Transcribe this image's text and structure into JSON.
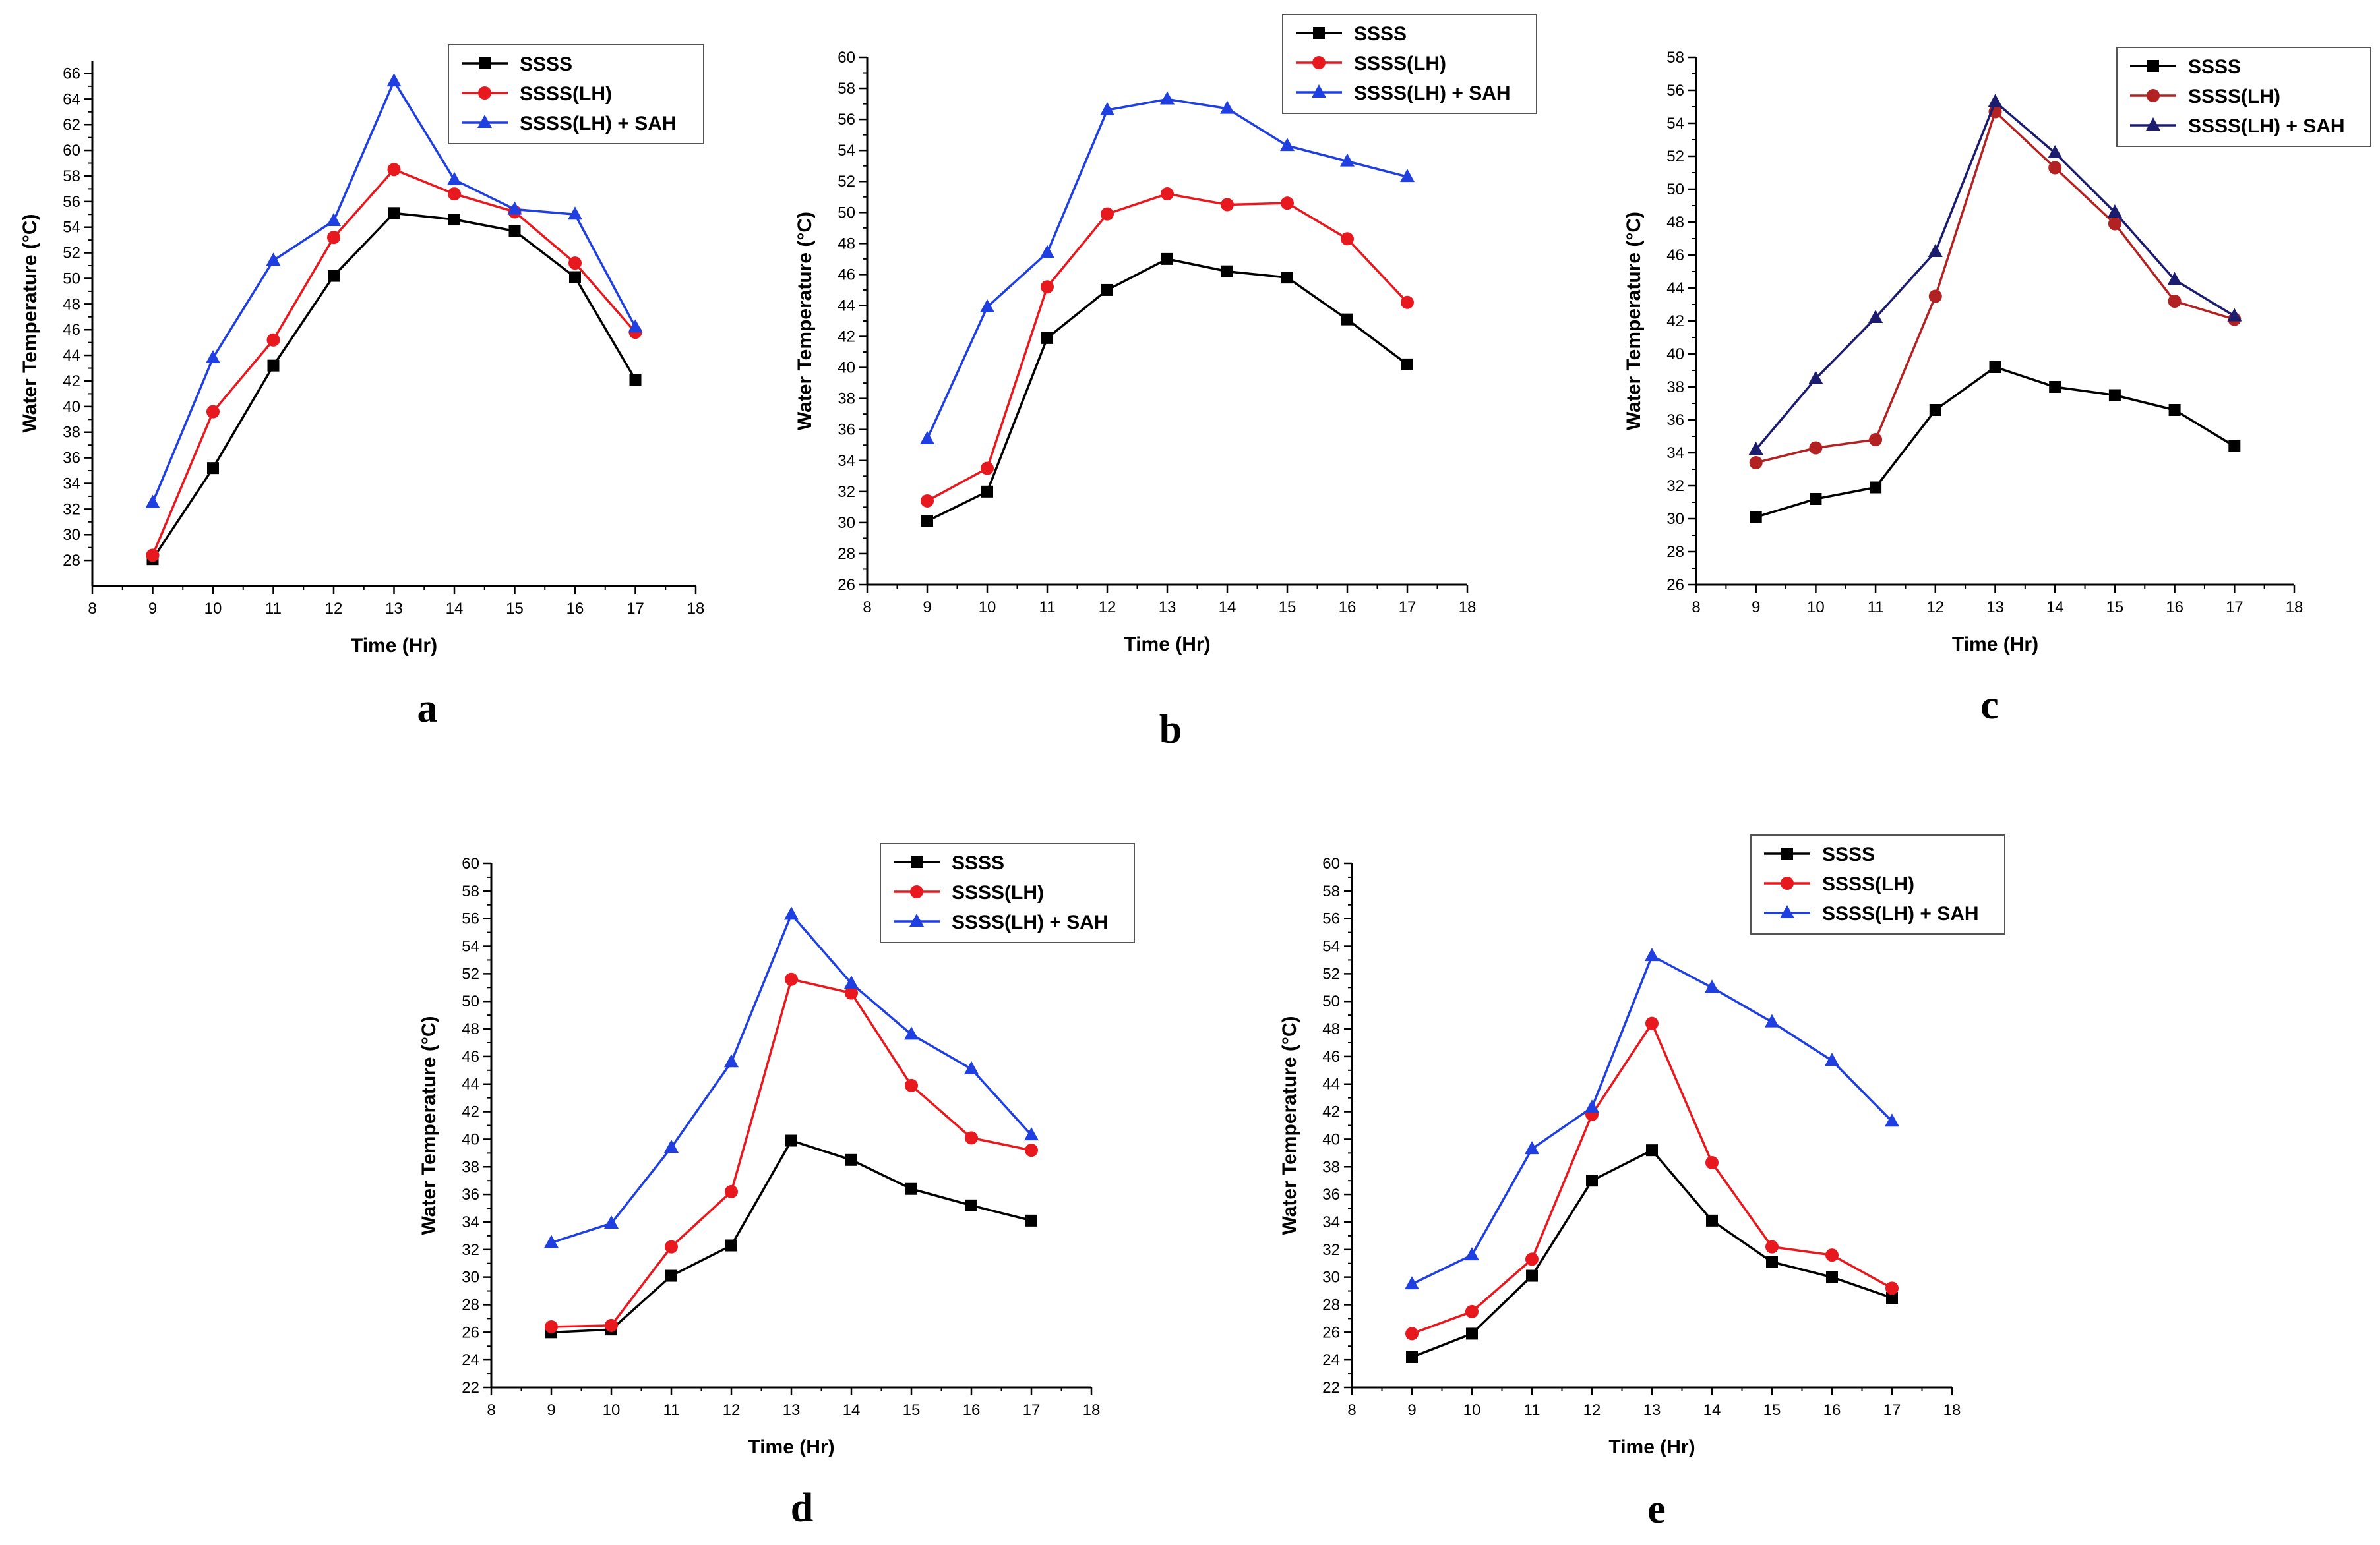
{
  "chart_data": [
    {
      "type": "line",
      "panel_label": "a",
      "xlabel": "Time (Hr)",
      "ylabel": "Water Temperature (°C)",
      "xlim": [
        8,
        18
      ],
      "ylim": [
        26,
        67
      ],
      "xticks": [
        8,
        9,
        10,
        11,
        12,
        13,
        14,
        15,
        16,
        17,
        18
      ],
      "yticks": [
        28,
        30,
        32,
        34,
        36,
        38,
        40,
        42,
        44,
        46,
        48,
        50,
        52,
        54,
        56,
        58,
        60,
        62,
        64,
        66
      ],
      "x": [
        9,
        10,
        11,
        12,
        13,
        14,
        15,
        16,
        17
      ],
      "legend_position": "top-right",
      "series": [
        {
          "name": "SSSS",
          "color": "#000000",
          "marker": "square",
          "values": [
            28.1,
            35.2,
            43.2,
            50.2,
            55.1,
            54.6,
            53.7,
            50.1,
            42.1
          ]
        },
        {
          "name": "SSSS(LH)",
          "color": "#e8191e",
          "marker": "circle",
          "values": [
            28.4,
            39.6,
            45.2,
            53.2,
            58.5,
            56.6,
            55.2,
            51.2,
            45.8
          ]
        },
        {
          "name": "SSSS(LH) + SAH",
          "color": "#1f3fe0",
          "marker": "triangle",
          "values": [
            32.5,
            43.8,
            51.4,
            54.5,
            65.4,
            57.7,
            55.4,
            55.0,
            46.2
          ]
        }
      ]
    },
    {
      "type": "line",
      "panel_label": "b",
      "xlabel": "Time (Hr)",
      "ylabel": "Water Temperature (°C)",
      "xlim": [
        8,
        18
      ],
      "ylim": [
        26,
        60
      ],
      "xticks": [
        8,
        9,
        10,
        11,
        12,
        13,
        14,
        15,
        16,
        17,
        18
      ],
      "yticks": [
        26,
        28,
        30,
        32,
        34,
        36,
        38,
        40,
        42,
        44,
        46,
        48,
        50,
        52,
        54,
        56,
        58,
        60
      ],
      "x": [
        9,
        10,
        11,
        12,
        13,
        14,
        15,
        16,
        17
      ],
      "legend_position": "top-right",
      "series": [
        {
          "name": "SSSS",
          "color": "#000000",
          "marker": "square",
          "values": [
            30.1,
            32.0,
            41.9,
            45.0,
            47.0,
            46.2,
            45.8,
            43.1,
            40.2
          ]
        },
        {
          "name": "SSSS(LH)",
          "color": "#e8191e",
          "marker": "circle",
          "values": [
            31.4,
            33.5,
            45.2,
            49.9,
            51.2,
            50.5,
            50.6,
            48.3,
            44.2
          ]
        },
        {
          "name": "SSSS(LH) + SAH",
          "color": "#1f3fe0",
          "marker": "triangle",
          "values": [
            35.4,
            43.9,
            47.4,
            56.6,
            57.3,
            56.7,
            54.3,
            53.3,
            52.3
          ]
        }
      ]
    },
    {
      "type": "line",
      "panel_label": "c",
      "xlabel": "Time (Hr)",
      "ylabel": "Water Temperature (°C)",
      "xlim": [
        8,
        18
      ],
      "ylim": [
        26,
        58
      ],
      "xticks": [
        8,
        9,
        10,
        11,
        12,
        13,
        14,
        15,
        16,
        17,
        18
      ],
      "yticks": [
        26,
        28,
        30,
        32,
        34,
        36,
        38,
        40,
        42,
        44,
        46,
        48,
        50,
        52,
        54,
        56,
        58
      ],
      "x": [
        9,
        10,
        11,
        12,
        13,
        14,
        15,
        16,
        17
      ],
      "legend_position": "top-right",
      "series": [
        {
          "name": "SSSS",
          "color": "#000000",
          "marker": "square",
          "values": [
            30.1,
            31.2,
            31.9,
            36.6,
            39.2,
            38.0,
            37.5,
            36.6,
            34.4
          ]
        },
        {
          "name": "SSSS(LH)",
          "color": "#b22222",
          "marker": "circle",
          "values": [
            33.4,
            34.3,
            34.8,
            43.5,
            54.7,
            51.3,
            47.9,
            43.2,
            42.1
          ]
        },
        {
          "name": "SSSS(LH) + SAH",
          "color": "#1c1c6e",
          "marker": "triangle",
          "values": [
            34.2,
            38.5,
            42.2,
            46.2,
            55.3,
            52.2,
            48.6,
            44.5,
            42.3
          ]
        }
      ]
    },
    {
      "type": "line",
      "panel_label": "d",
      "xlabel": "Time (Hr)",
      "ylabel": "Water Temperature (°C)",
      "xlim": [
        8,
        18
      ],
      "ylim": [
        22,
        60
      ],
      "xticks": [
        8,
        9,
        10,
        11,
        12,
        13,
        14,
        15,
        16,
        17,
        18
      ],
      "yticks": [
        22,
        24,
        26,
        28,
        30,
        32,
        34,
        36,
        38,
        40,
        42,
        44,
        46,
        48,
        50,
        52,
        54,
        56,
        58,
        60
      ],
      "x": [
        9,
        10,
        11,
        12,
        13,
        14,
        15,
        16,
        17
      ],
      "legend_position": "top-right",
      "series": [
        {
          "name": "SSSS",
          "color": "#000000",
          "marker": "square",
          "values": [
            26.0,
            26.2,
            30.1,
            32.3,
            39.9,
            38.5,
            36.4,
            35.2,
            34.1
          ]
        },
        {
          "name": "SSSS(LH)",
          "color": "#e8191e",
          "marker": "circle",
          "values": [
            26.4,
            26.5,
            32.2,
            36.2,
            51.6,
            50.6,
            43.9,
            40.1,
            39.2
          ]
        },
        {
          "name": "SSSS(LH) + SAH",
          "color": "#1f3fe0",
          "marker": "triangle",
          "values": [
            32.5,
            33.9,
            39.4,
            45.6,
            56.3,
            51.3,
            47.6,
            45.1,
            40.3
          ]
        }
      ]
    },
    {
      "type": "line",
      "panel_label": "e",
      "xlabel": "Time (Hr)",
      "ylabel": "Water Temperature (°C)",
      "xlim": [
        8,
        18
      ],
      "ylim": [
        22,
        60
      ],
      "xticks": [
        8,
        9,
        10,
        11,
        12,
        13,
        14,
        15,
        16,
        17,
        18
      ],
      "yticks": [
        22,
        24,
        26,
        28,
        30,
        32,
        34,
        36,
        38,
        40,
        42,
        44,
        46,
        48,
        50,
        52,
        54,
        56,
        58,
        60
      ],
      "x": [
        9,
        10,
        11,
        12,
        13,
        14,
        15,
        16,
        17
      ],
      "legend_position": "top-right",
      "series": [
        {
          "name": "SSSS",
          "color": "#000000",
          "marker": "square",
          "values": [
            24.2,
            25.9,
            30.1,
            37.0,
            39.2,
            34.1,
            31.1,
            30.0,
            28.5
          ]
        },
        {
          "name": "SSSS(LH)",
          "color": "#e8191e",
          "marker": "circle",
          "values": [
            25.9,
            27.5,
            31.3,
            41.8,
            48.4,
            38.3,
            32.2,
            31.6,
            29.2
          ]
        },
        {
          "name": "SSSS(LH) + SAH",
          "color": "#1f3fe0",
          "marker": "triangle",
          "values": [
            29.5,
            31.6,
            39.3,
            42.3,
            53.3,
            51.0,
            48.5,
            45.7,
            41.3
          ]
        }
      ]
    }
  ]
}
